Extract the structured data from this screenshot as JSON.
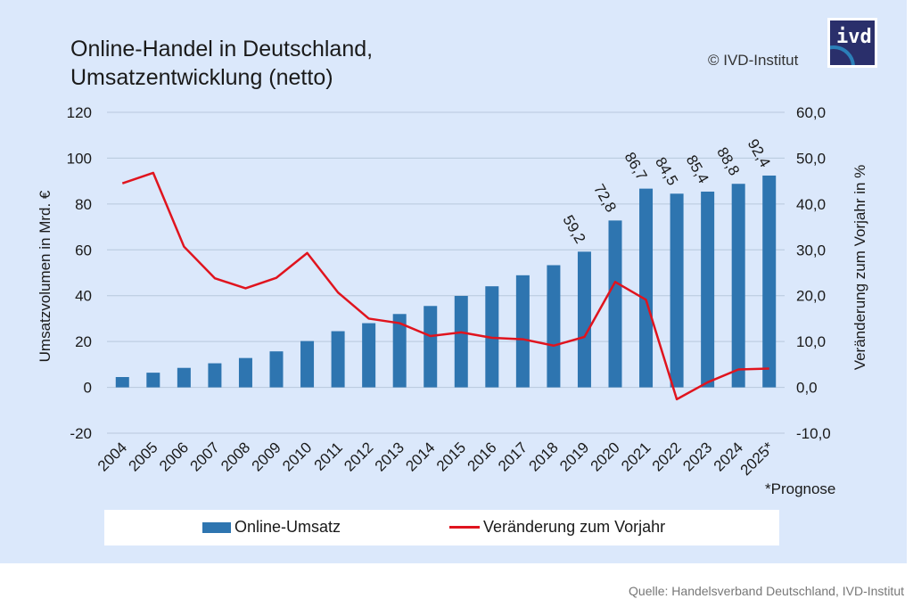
{
  "header": {
    "title_line1": "Online-Handel in Deutschland,",
    "title_line2": "Umsatzentwicklung (netto)",
    "copyright": "© IVD-Institut",
    "logo_text": "ivd"
  },
  "footnote": "*Prognose",
  "source": "Quelle: Handelsverband Deutschland, IVD-Institut",
  "colors": {
    "bar": "#2e75b0",
    "line": "#e0141e",
    "background": "#dbe8fb",
    "grid": "#b8c8dc"
  },
  "chart_data": {
    "type": "bar+line",
    "title": "Online-Handel in Deutschland, Umsatzentwicklung (netto)",
    "categories": [
      "2004",
      "2005",
      "2006",
      "2007",
      "2008",
      "2009",
      "2010",
      "2011",
      "2012",
      "2013",
      "2014",
      "2015",
      "2016",
      "2017",
      "2018",
      "2019",
      "2020",
      "2021",
      "2022",
      "2023",
      "2024",
      "2025*"
    ],
    "series": [
      {
        "name": "Online-Umsatz",
        "type": "bar",
        "axis": "left",
        "values": [
          4.5,
          6.4,
          8.5,
          10.5,
          12.8,
          15.7,
          20.2,
          24.5,
          28.0,
          32.0,
          35.5,
          39.9,
          44.1,
          48.9,
          53.3,
          59.2,
          72.8,
          86.7,
          84.5,
          85.4,
          88.8,
          92.4
        ],
        "labels": {
          "2019": "59,2",
          "2020": "72,8",
          "2021": "86,7",
          "2022": "84,5",
          "2023": "85,4",
          "2024": "88,8",
          "2025*": "92,4"
        }
      },
      {
        "name": "Veränderung zum Vorjahr",
        "type": "line",
        "axis": "right",
        "values": [
          44.5,
          46.8,
          30.7,
          23.8,
          21.6,
          23.9,
          29.3,
          20.7,
          15.0,
          14.0,
          11.2,
          12.0,
          10.8,
          10.5,
          9.1,
          11.0,
          23.0,
          19.1,
          -2.6,
          1.1,
          3.9,
          4.1
        ]
      }
    ],
    "ylabel": "Umsatzvolumen in Mrd. €",
    "y2label": "Veränderung zum Vorjahr in %",
    "ylim": [
      -20,
      120
    ],
    "y2lim": [
      -10,
      60
    ],
    "yticks": [
      "-20",
      "0",
      "20",
      "40",
      "60",
      "80",
      "100",
      "120"
    ],
    "y2ticks": [
      "-10,0",
      "0,0",
      "10,0",
      "20,0",
      "30,0",
      "40,0",
      "50,0",
      "60,0"
    ],
    "grid": true,
    "legend": {
      "position": "bottom",
      "entries": [
        "Online-Umsatz",
        "Veränderung zum Vorjahr"
      ]
    }
  }
}
